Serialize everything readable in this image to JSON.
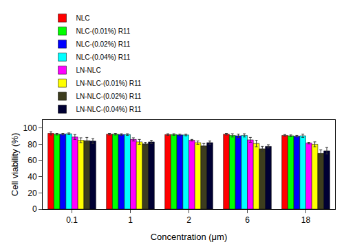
{
  "chart_data": {
    "type": "bar",
    "x_label": "Concentration (μm)",
    "y_label": "Cell viability (%)",
    "categories": [
      "0.1",
      "1",
      "2",
      "6",
      "18"
    ],
    "series": [
      {
        "name": "NLC",
        "color": "#ff0000",
        "values": [
          93.5,
          92.5,
          92,
          92.5,
          91
        ],
        "errors": [
          2,
          1,
          1,
          1,
          1
        ]
      },
      {
        "name": "NLC-(0.01%) R11",
        "color": "#00ff00",
        "values": [
          92.5,
          92.5,
          92,
          91,
          90.5
        ],
        "errors": [
          1,
          1,
          1,
          2,
          1
        ]
      },
      {
        "name": "NLC-(0.02%) R11",
        "color": "#0000ff",
        "values": [
          92.5,
          92,
          91.5,
          90.5,
          90
        ],
        "errors": [
          1,
          1,
          1,
          2,
          1
        ]
      },
      {
        "name": "NLC-(0.04%) R11",
        "color": "#00ffff",
        "values": [
          93,
          92,
          91.5,
          91,
          90.5
        ],
        "errors": [
          1,
          1,
          1,
          2,
          2
        ]
      },
      {
        "name": "LN-NLC",
        "color": "#ff00ff",
        "values": [
          89,
          86,
          85,
          85.5,
          81.5
        ],
        "errors": [
          3,
          2,
          1,
          3,
          1
        ]
      },
      {
        "name": "LN-NLC-(0.01%) R11",
        "color": "#ffff00",
        "values": [
          85,
          83,
          82,
          81,
          80
        ],
        "errors": [
          3,
          3,
          2,
          4,
          3
        ]
      },
      {
        "name": "LN-NLC-(0.02%) R11",
        "color": "#3d3d1e",
        "values": [
          84.5,
          80.5,
          78,
          74.5,
          69
        ],
        "errors": [
          4,
          2,
          3,
          3,
          4
        ]
      },
      {
        "name": "LN-NLC-(0.04%) R11",
        "color": "#000033",
        "values": [
          84,
          83,
          82,
          77.5,
          72
        ],
        "errors": [
          3,
          2,
          2,
          2,
          4
        ]
      }
    ],
    "ylim": [
      0,
      110
    ],
    "yticks": [
      0,
      20,
      40,
      60,
      80,
      100
    ],
    "legend": "top",
    "grid": false
  }
}
